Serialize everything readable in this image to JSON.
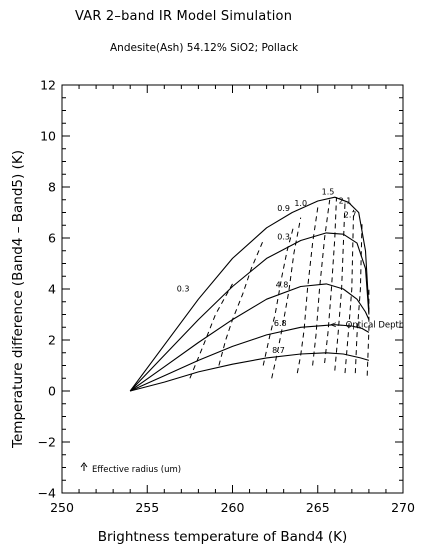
{
  "figure": {
    "title": "VAR 2–band IR Model Simulation",
    "subtitle": "Andesite(Ash) 54.12% SiO2; Pollack"
  },
  "chart_data": {
    "type": "line",
    "xlabel": "Brightness temperature of Band4  (K)",
    "ylabel": "Temperature difference (Band4 – Band5)  (K)",
    "xlim": [
      250,
      270
    ],
    "ylim": [
      -4,
      12
    ],
    "xticks": [
      250,
      255,
      260,
      265,
      270
    ],
    "yticks": [
      -4,
      -2,
      0,
      2,
      4,
      6,
      8,
      10,
      12
    ],
    "grid": false,
    "radius_label_text": "Effective radius (um)",
    "optical_depth_label_text": "<-- Optical Depth",
    "series": [
      {
        "label": "0.9",
        "x": [
          254.0,
          256.0,
          258.0,
          260.0,
          262.0,
          263.5,
          265.0,
          266.0,
          266.8,
          267.4,
          267.8,
          268.0
        ],
        "y": [
          0.0,
          1.8,
          3.6,
          5.2,
          6.4,
          7.0,
          7.45,
          7.6,
          7.4,
          7.0,
          5.5,
          3.2
        ]
      },
      {
        "label": "0.3",
        "x": [
          254.0,
          256.0,
          258.0,
          260.0,
          262.0,
          264.0,
          265.5,
          266.5,
          267.3,
          267.8,
          268.0
        ],
        "y": [
          0.0,
          1.4,
          2.8,
          4.1,
          5.2,
          5.9,
          6.2,
          6.15,
          5.8,
          4.8,
          3.0
        ]
      },
      {
        "label": "4.8",
        "x": [
          254.0,
          256.0,
          258.0,
          260.0,
          262.0,
          264.0,
          265.5,
          266.5,
          267.3,
          267.8,
          268.0
        ],
        "y": [
          0.0,
          0.95,
          1.9,
          2.8,
          3.6,
          4.1,
          4.2,
          4.0,
          3.6,
          3.1,
          2.8
        ]
      },
      {
        "label": "6.8",
        "x": [
          254.0,
          256.0,
          258.0,
          260.0,
          262.0,
          264.0,
          266.0,
          267.0,
          267.6,
          268.0
        ],
        "y": [
          0.0,
          0.6,
          1.2,
          1.75,
          2.2,
          2.5,
          2.6,
          2.55,
          2.45,
          2.3
        ]
      },
      {
        "label": "8.7",
        "x": [
          254.0,
          256.0,
          258.0,
          260.0,
          262.0,
          264.0,
          265.5,
          266.5,
          267.5,
          268.0
        ],
        "y": [
          0.0,
          0.35,
          0.75,
          1.05,
          1.3,
          1.45,
          1.5,
          1.45,
          1.3,
          1.2
        ]
      }
    ],
    "optical_depth_lines": [
      {
        "label": "",
        "x": [
          257.5,
          258.3,
          259.0,
          260.0
        ],
        "y": [
          0.5,
          1.8,
          3.0,
          4.2
        ]
      },
      {
        "label": "",
        "x": [
          259.2,
          259.6,
          260.0,
          260.6,
          261.1,
          261.8
        ],
        "y": [
          1.0,
          2.0,
          2.8,
          3.8,
          4.8,
          5.9
        ]
      },
      {
        "label": "",
        "x": [
          261.8,
          262.0,
          262.2,
          262.5,
          262.9,
          263.2,
          263.6
        ],
        "y": [
          1.0,
          1.6,
          2.2,
          3.0,
          4.5,
          5.5,
          6.5
        ]
      },
      {
        "label": "",
        "x": [
          262.3,
          262.6,
          262.9,
          263.3,
          263.6,
          264.0
        ],
        "y": [
          0.5,
          1.4,
          2.4,
          3.9,
          5.4,
          6.8
        ]
      },
      {
        "label": "",
        "x": [
          263.8,
          264.0,
          264.2,
          264.4,
          264.7,
          265.0
        ],
        "y": [
          0.7,
          1.4,
          2.4,
          4.0,
          5.8,
          7.2
        ]
      },
      {
        "label": "",
        "x": [
          264.7,
          264.9,
          265.1,
          265.4,
          265.7
        ],
        "y": [
          1.0,
          2.2,
          4.0,
          6.0,
          7.5
        ]
      },
      {
        "label": "",
        "x": [
          265.4,
          265.6,
          265.8,
          266.0,
          266.1
        ],
        "y": [
          1.1,
          2.3,
          4.0,
          6.0,
          7.6
        ]
      },
      {
        "label": "",
        "x": [
          266.0,
          266.2,
          266.4,
          266.6
        ],
        "y": [
          0.8,
          2.3,
          4.0,
          7.4
        ]
      },
      {
        "label": "",
        "x": [
          266.6,
          266.8,
          267.0,
          267.1
        ],
        "y": [
          0.7,
          2.3,
          4.0,
          7.1
        ]
      },
      {
        "label": "",
        "x": [
          267.2,
          267.3,
          267.5,
          267.6
        ],
        "y": [
          0.7,
          2.2,
          4.0,
          6.7
        ]
      },
      {
        "label": "",
        "x": [
          267.9,
          268.0,
          268.0
        ],
        "y": [
          0.6,
          2.4,
          4.0
        ]
      }
    ],
    "point_labels": [
      {
        "text": "0.9",
        "x": 263.0,
        "y": 7.05
      },
      {
        "text": "1.0",
        "x": 264.0,
        "y": 7.25
      },
      {
        "text": "1.5",
        "x": 265.6,
        "y": 7.7
      },
      {
        "text": "2.1",
        "x": 266.6,
        "y": 7.35
      },
      {
        "text": "2.7",
        "x": 266.9,
        "y": 6.8
      },
      {
        "text": "0.3",
        "x": 257.1,
        "y": 3.9
      },
      {
        "text": "0.3",
        "x": 263.0,
        "y": 5.95
      },
      {
        "text": "4.8",
        "x": 262.9,
        "y": 4.05
      },
      {
        "text": "6.8",
        "x": 262.8,
        "y": 2.55
      },
      {
        "text": "8.7",
        "x": 262.7,
        "y": 1.5
      }
    ]
  }
}
